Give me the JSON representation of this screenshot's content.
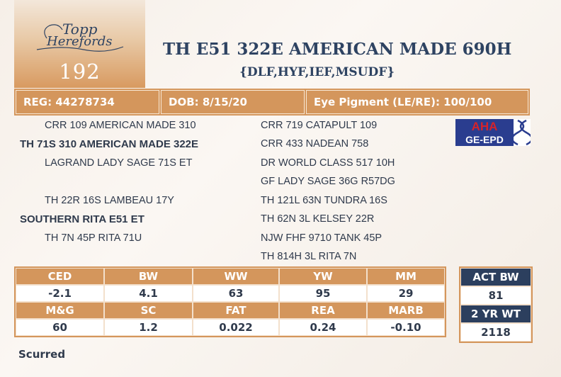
{
  "lot": {
    "number": "192",
    "logo_text_line1": "Topp",
    "logo_text_line2": "Herefords"
  },
  "animal": {
    "name": "TH E51 322E AMERICAN MADE 690H",
    "designations": "{DLF,HYF,IEF,MSUDF}"
  },
  "info_bar": {
    "reg": "REG: 44278734",
    "dob": "DOB: 8/15/20",
    "eye_pigment": "Eye Pigment (LE/RE): 100/100"
  },
  "pedigree": {
    "sire_sire": "CRR 109 AMERICAN MADE 310",
    "sire": "TH 71S 310 AMERICAN MADE 322E",
    "sire_dam": "LAGRAND LADY SAGE 71S ET",
    "dam_sire": "TH 22R 16S LAMBEAU 17Y",
    "dam": "SOUTHERN RITA E51 ET",
    "dam_dam": "TH 7N 45P RITA 71U",
    "ggp": [
      "CRR 719 CATAPULT 109",
      "CRR 433 NADEAN 758",
      "DR WORLD CLASS 517 10H",
      "GF LADY SAGE 36G R57DG",
      "TH 121L 63N TUNDRA 16S",
      "TH 62N 3L KELSEY 22R",
      "NJW FHF 9710 TANK 45P",
      "TH 814H 3L RITA 7N"
    ]
  },
  "badge": {
    "line1": "AHA",
    "line2": "GE-EPD",
    "icon": "dna-icon",
    "colors": {
      "red": "#d6232a",
      "navy": "#2a3d8f"
    }
  },
  "epd": {
    "row1_headers": [
      "CED",
      "BW",
      "WW",
      "YW",
      "MM"
    ],
    "row1_values": [
      "-2.1",
      "4.1",
      "63",
      "95",
      "29"
    ],
    "row2_headers": [
      "M&G",
      "SC",
      "FAT",
      "REA",
      "MARB"
    ],
    "row2_values": [
      "60",
      "1.2",
      "0.022",
      "0.24",
      "-0.10"
    ]
  },
  "actuals": {
    "act_bw_label": "ACT BW",
    "act_bw_value": "81",
    "yr2_wt_label": "2 YR WT",
    "yr2_wt_value": "2118"
  },
  "footnote": "Scurred",
  "colors": {
    "accent": "#d4965c",
    "navy": "#2c3f5e",
    "title": "#2e4362"
  }
}
